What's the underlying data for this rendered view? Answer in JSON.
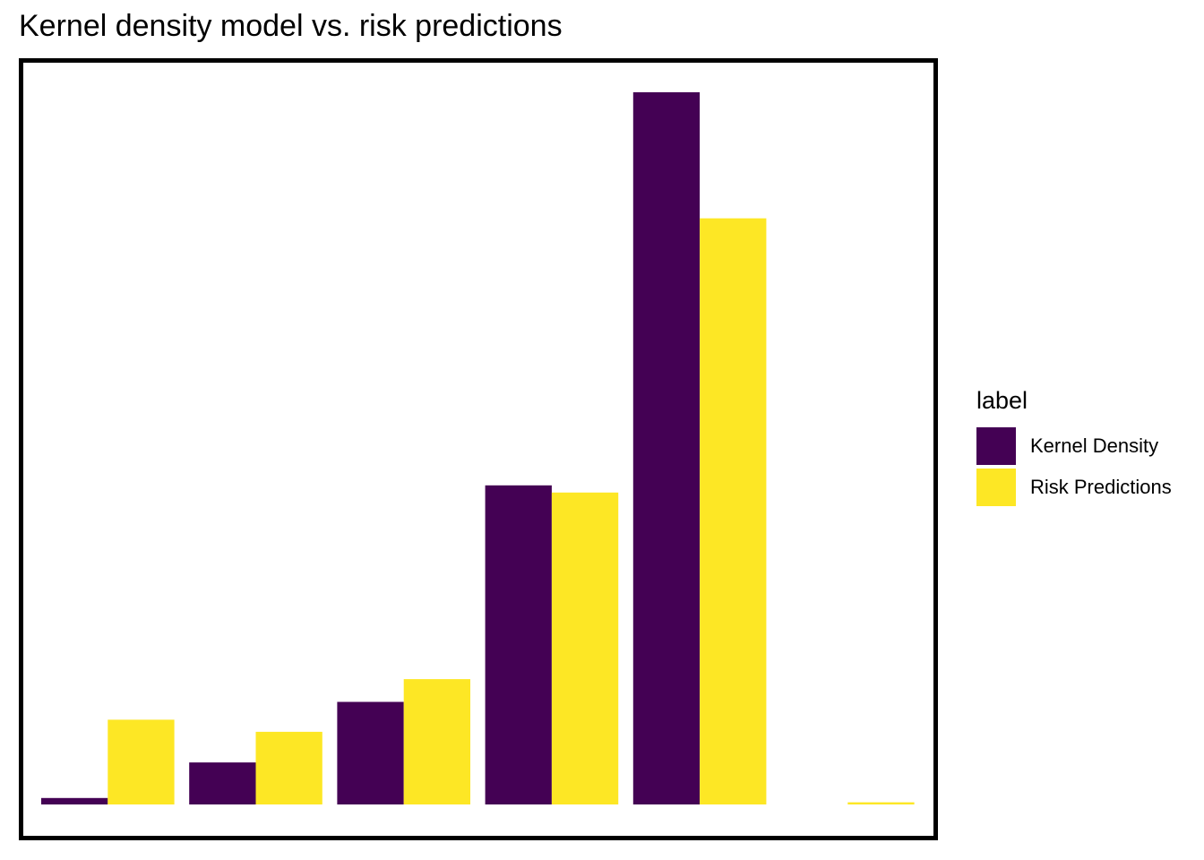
{
  "chart_data": {
    "type": "bar",
    "title": "Kernel density model vs. risk predictions",
    "xlabel": "",
    "ylabel": "",
    "categories": [
      "",
      "",
      "",
      "",
      "",
      ""
    ],
    "ylim": [
      0,
      100
    ],
    "grid": false,
    "legend": {
      "title": "label",
      "placement": "right"
    },
    "series": [
      {
        "name": "Kernel Density",
        "color": "#440154",
        "values": [
          0.9,
          5.9,
          14.4,
          44.8,
          100,
          0
        ]
      },
      {
        "name": "Risk Predictions",
        "color": "#FDE725",
        "values": [
          11.9,
          10.2,
          17.6,
          43.8,
          82.3,
          0.3
        ]
      }
    ]
  }
}
